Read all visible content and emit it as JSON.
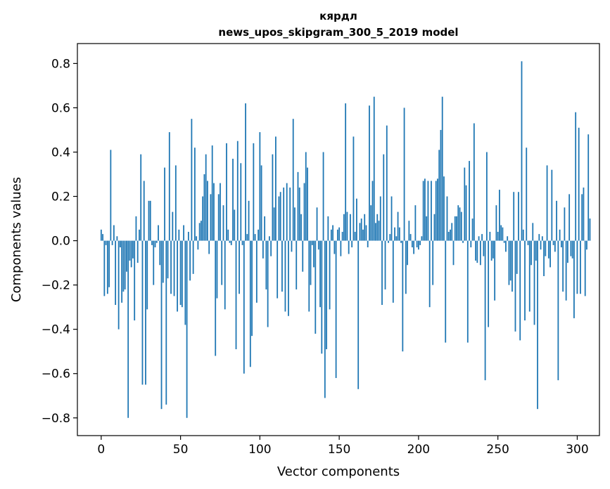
{
  "chart_data": {
    "type": "bar",
    "title_lines": [
      "кярдл",
      "news_upos_skipgram_300_5_2019 model"
    ],
    "xlabel": "Vector components",
    "ylabel": "Components values",
    "xlim": [
      -15,
      314
    ],
    "ylim": [
      -0.88,
      0.89
    ],
    "xticks": [
      0,
      50,
      100,
      150,
      200,
      250,
      300
    ],
    "xtick_labels": [
      "0",
      "50",
      "100",
      "150",
      "200",
      "250",
      "300"
    ],
    "yticks": [
      -0.8,
      -0.6,
      -0.4,
      -0.2,
      0.0,
      0.2,
      0.4,
      0.6,
      0.8
    ],
    "ytick_labels": [
      "−0.8",
      "−0.6",
      "−0.4",
      "−0.2",
      "0.0",
      "0.2",
      "0.4",
      "0.6",
      "0.8"
    ],
    "grid": false,
    "bar_color": "#1f77b4",
    "values": [
      0.05,
      0.03,
      -0.25,
      -0.02,
      -0.24,
      -0.21,
      0.41,
      -0.02,
      0.07,
      -0.29,
      0.02,
      -0.4,
      -0.03,
      -0.28,
      -0.23,
      -0.22,
      -0.14,
      -0.8,
      -0.09,
      -0.12,
      -0.08,
      -0.36,
      0.11,
      -0.1,
      0.05,
      0.39,
      -0.65,
      0.27,
      -0.65,
      -0.31,
      0.18,
      0.18,
      -0.02,
      -0.2,
      -0.03,
      -0.01,
      0.07,
      -0.11,
      -0.76,
      -0.19,
      0.33,
      -0.74,
      -0.17,
      0.49,
      -0.24,
      0.13,
      -0.25,
      0.34,
      -0.32,
      0.05,
      -0.29,
      -0.3,
      0.07,
      -0.38,
      -0.8,
      0.04,
      -0.18,
      0.55,
      -0.15,
      0.42,
      0.02,
      -0.04,
      0.08,
      0.09,
      0.2,
      0.3,
      0.39,
      0.27,
      -0.06,
      0.21,
      0.43,
      0.26,
      -0.52,
      -0.26,
      0.21,
      0.26,
      -0.2,
      0.16,
      -0.31,
      0.44,
      0.05,
      -0.01,
      -0.02,
      0.37,
      0.14,
      -0.49,
      0.45,
      -0.24,
      0.35,
      -0.02,
      -0.6,
      0.62,
      0.03,
      0.18,
      -0.57,
      -0.43,
      0.44,
      0.03,
      -0.28,
      0.05,
      0.49,
      0.34,
      -0.08,
      0.11,
      -0.22,
      -0.39,
      0.02,
      -0.07,
      0.39,
      0.15,
      0.47,
      -0.26,
      0.2,
      0.22,
      -0.23,
      0.24,
      -0.32,
      0.26,
      -0.34,
      0.24,
      -0.05,
      0.55,
      0.15,
      -0.22,
      0.31,
      0.24,
      0.12,
      -0.14,
      0.26,
      0.4,
      0.33,
      -0.32,
      -0.2,
      -0.02,
      -0.12,
      -0.42,
      0.15,
      -0.04,
      -0.3,
      -0.51,
      0.4,
      -0.71,
      -0.49,
      0.11,
      -0.31,
      0.05,
      0.07,
      -0.06,
      -0.62,
      0.05,
      0.06,
      -0.07,
      0.04,
      0.12,
      0.62,
      0.13,
      -0.06,
      0.12,
      -0.03,
      0.47,
      0.04,
      0.19,
      -0.67,
      0.08,
      0.1,
      0.05,
      0.12,
      0.07,
      -0.03,
      0.61,
      0.16,
      0.27,
      0.65,
      0.08,
      0.12,
      0.09,
      0.2,
      -0.29,
      0.39,
      -0.22,
      0.52,
      -0.01,
      0.03,
      0.2,
      -0.28,
      0.06,
      0.02,
      0.13,
      0.06,
      -0.01,
      -0.5,
      0.6,
      -0.24,
      -0.11,
      0.09,
      0.03,
      -0.03,
      -0.06,
      0.16,
      -0.03,
      -0.04,
      -0.02,
      0.02,
      0.27,
      0.28,
      0.11,
      0.27,
      -0.3,
      0.27,
      -0.2,
      0.12,
      0.27,
      0.28,
      0.41,
      0.5,
      0.65,
      0.29,
      -0.46,
      0.2,
      0.04,
      0.05,
      0.08,
      -0.11,
      0.11,
      0.11,
      0.16,
      0.15,
      0.13,
      -0.01,
      0.33,
      0.25,
      -0.46,
      0.36,
      -0.03,
      0.1,
      0.53,
      -0.09,
      -0.1,
      0.02,
      -0.11,
      0.03,
      -0.07,
      -0.63,
      0.4,
      -0.39,
      0.04,
      -0.09,
      -0.08,
      -0.27,
      0.16,
      0.04,
      0.23,
      0.07,
      0.06,
      -0.01,
      -0.05,
      0.02,
      -0.2,
      -0.18,
      -0.23,
      0.22,
      -0.41,
      -0.15,
      0.22,
      -0.45,
      0.81,
      0.05,
      -0.36,
      0.42,
      -0.02,
      -0.32,
      -0.11,
      0.08,
      -0.38,
      -0.09,
      -0.76,
      0.03,
      -0.04,
      0.02,
      -0.16,
      -0.07,
      0.34,
      -0.08,
      -0.12,
      0.32,
      -0.02,
      -0.05,
      0.18,
      -0.63,
      0.05,
      -0.03,
      -0.23,
      0.15,
      -0.27,
      -0.1,
      0.21,
      -0.07,
      -0.08,
      -0.35,
      0.58,
      -0.24,
      0.51,
      -0.24,
      0.21,
      0.24,
      -0.25,
      -0.04,
      0.48,
      0.1
    ]
  }
}
